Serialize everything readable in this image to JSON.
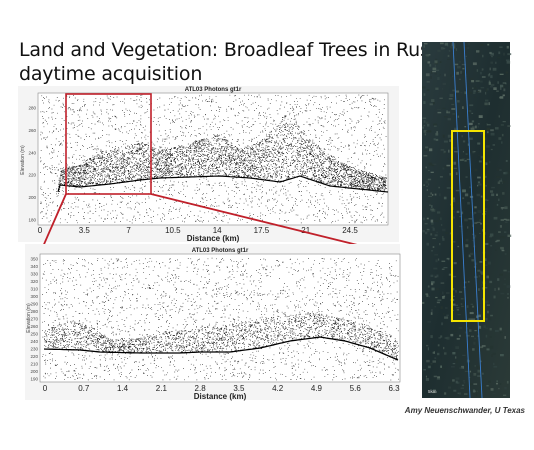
{
  "title": {
    "line1": "Land and Vegetation:  Broadleaf Trees in Russia,",
    "line2": "daytime acquisition"
  },
  "credit": "Amy Neuenschwander, U Texas",
  "colors": {
    "zoom_box": "#c0202a",
    "track_box": "#f5e400",
    "track_line": "#3a7fd0",
    "photons": "#111111"
  },
  "top_plot": {
    "title": "ATL03 Photons gt1r",
    "xlabel": "Distance (km)",
    "ylabel": "Elevation (m)",
    "xticks": [
      "0",
      "3.5",
      "7",
      "10.5",
      "14",
      "17.5",
      "21",
      "24.5"
    ],
    "yticks": [
      "280",
      "260",
      "240",
      "220",
      "200",
      "180"
    ]
  },
  "bottom_plot": {
    "title": "ATL03 Photons gt1r",
    "xlabel": "Distance (km)",
    "ylabel": "Elevation (m)",
    "xticks": [
      "0",
      "0.7",
      "1.4",
      "2.1",
      "2.8",
      "3.5",
      "4.2",
      "4.9",
      "5.6",
      "6.3"
    ],
    "yticks": [
      "350",
      "340",
      "330",
      "320",
      "310",
      "300",
      "290",
      "280",
      "270",
      "260",
      "250",
      "240",
      "230",
      "220",
      "210",
      "200",
      "190"
    ]
  },
  "satellite": {
    "corner_label": "5km"
  }
}
